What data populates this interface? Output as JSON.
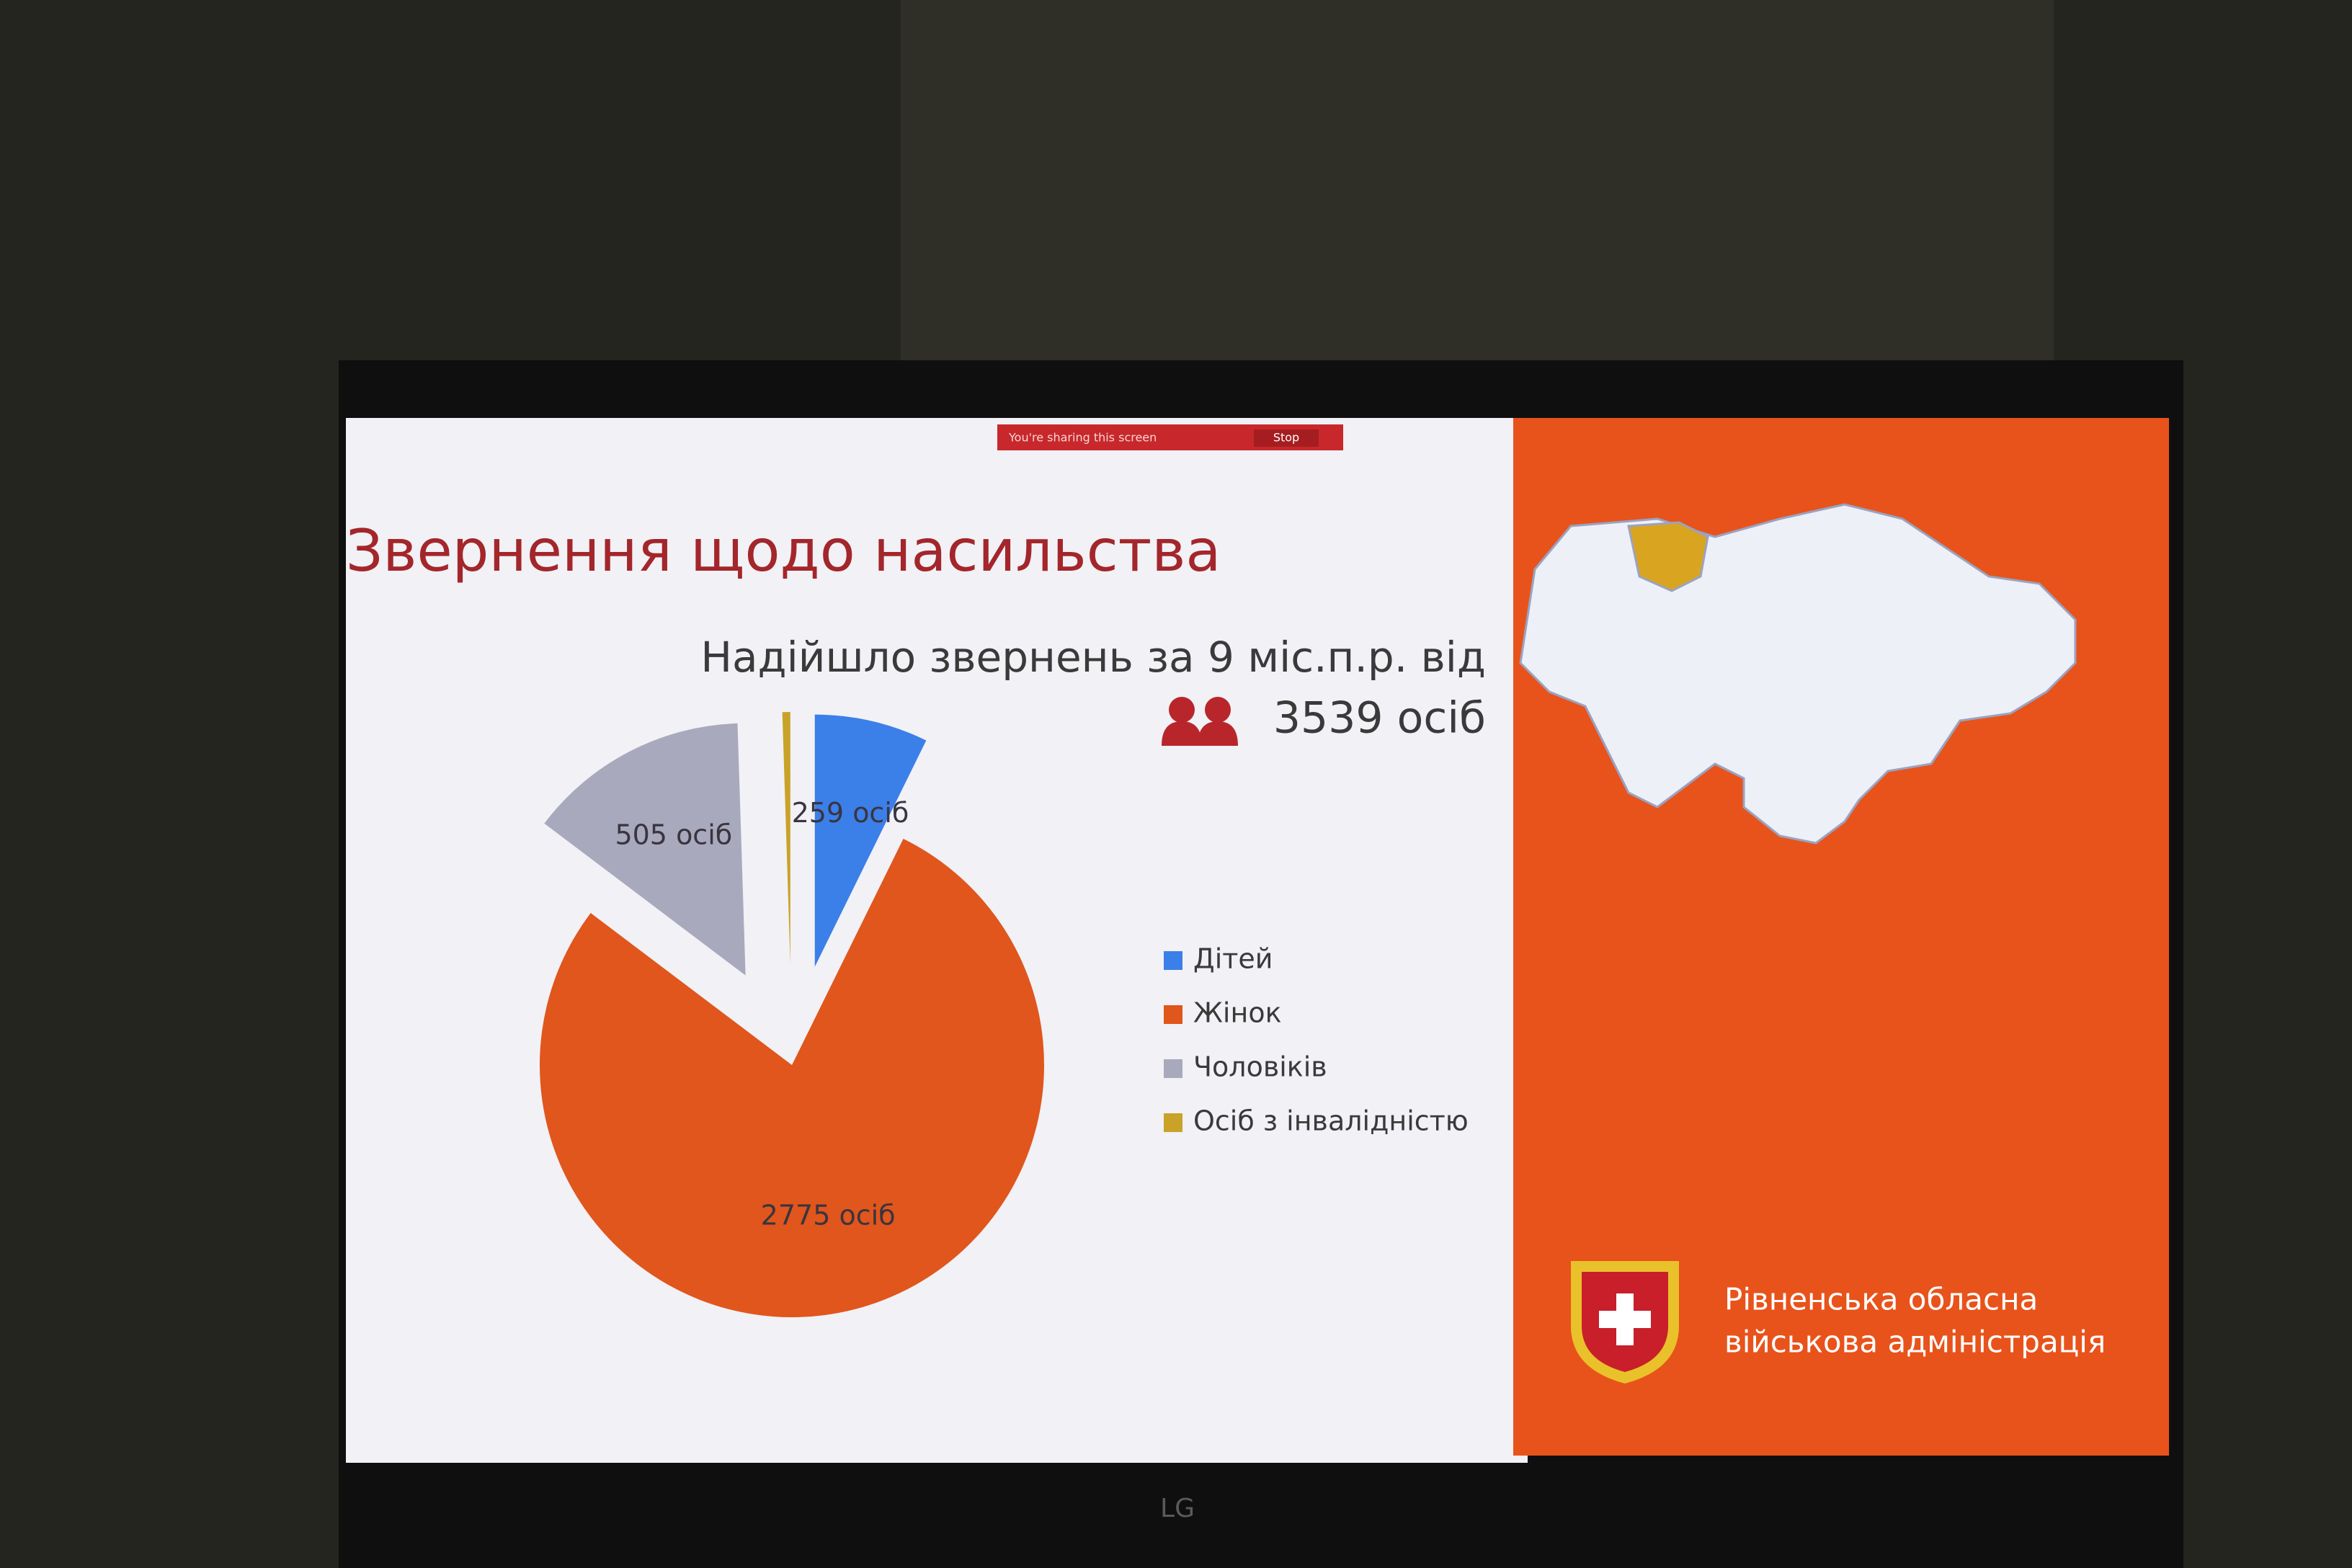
{
  "screen": {
    "sharing_text": "You're sharing this screen",
    "stop_button": "Stop",
    "brand": "LG"
  },
  "slide": {
    "subtitle": "Надійшло звернень за 9 міс.п.р. від",
    "total_label": "3539 осіб",
    "org_line1": "Рівненська обласна",
    "org_line2": "військова адміністрація"
  },
  "chart_data": {
    "type": "pie",
    "title": "Звернення щодо насильства",
    "categories": [
      "Дітей",
      "Жінок",
      "Чоловіків",
      "Осіб з інвалідністю"
    ],
    "values": [
      259,
      2775,
      505,
      18
    ],
    "value_labels": [
      "259 осіб",
      "2775 осіб",
      "505 осіб",
      null
    ],
    "colors": [
      "#3b7fe8",
      "#e0561c",
      "#a8a9bd",
      "#c9a227"
    ]
  }
}
